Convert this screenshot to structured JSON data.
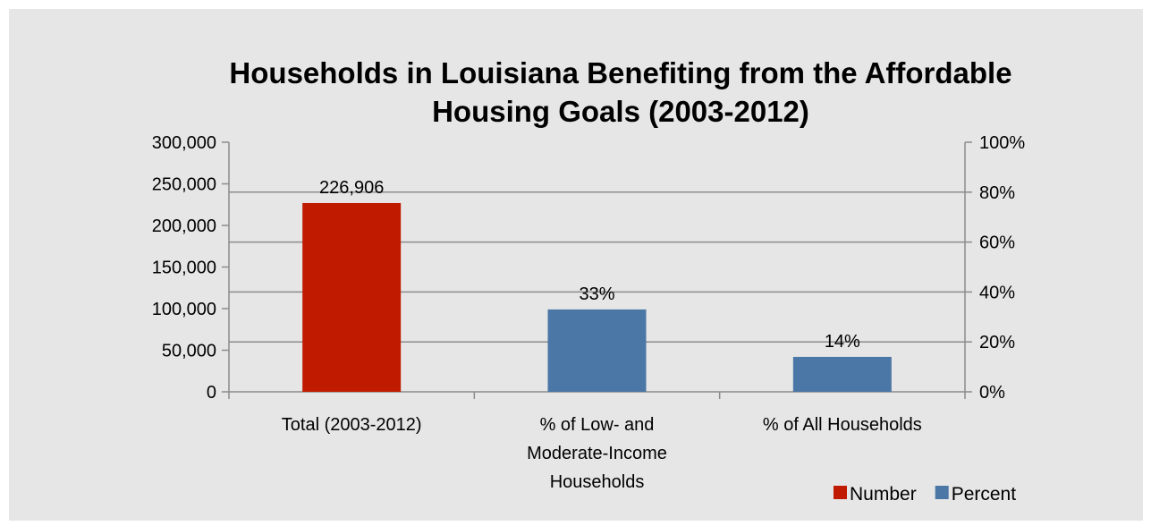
{
  "chart_data": {
    "type": "bar",
    "title": "Households in Louisiana Benefiting from the Affordable Housing Goals (2003-2012)",
    "title_lines": [
      "Households in Louisiana Benefiting from the Affordable",
      "Housing Goals (2003-2012)"
    ],
    "categories": [
      "Total (2003-2012)",
      "% of Low- and Moderate-Income Households",
      "% of All Households"
    ],
    "category_lines": [
      [
        "Total (2003-2012)"
      ],
      [
        "% of Low- and",
        "Moderate-Income",
        "Households"
      ],
      [
        "% of All Households"
      ]
    ],
    "series": [
      {
        "name": "Number",
        "axis": "left",
        "color": "#c01a00",
        "values": [
          226906,
          null,
          null
        ],
        "labels": [
          "226,906",
          "",
          ""
        ]
      },
      {
        "name": "Percent",
        "axis": "right",
        "color": "#4a77a5",
        "values": [
          null,
          33,
          14
        ],
        "labels": [
          "",
          "33%",
          "14%"
        ]
      }
    ],
    "y_left": {
      "ylim": [
        0,
        300000
      ],
      "ticks": [
        0,
        50000,
        100000,
        150000,
        200000,
        250000,
        300000
      ],
      "tick_labels": [
        "0",
        "50,000",
        "100,000",
        "150,000",
        "200,000",
        "250,000",
        "300,000"
      ]
    },
    "y_right": {
      "ylim": [
        0,
        100
      ],
      "ticks": [
        0,
        20,
        40,
        60,
        80,
        100
      ],
      "tick_labels": [
        "0%",
        "20%",
        "40%",
        "60%",
        "80%",
        "100%"
      ]
    },
    "grid": true,
    "legend": "bottom-right",
    "colors": {
      "background": "#e6e6e6",
      "grid": "#8c8c8c",
      "axis": "#8c8c8c"
    }
  }
}
